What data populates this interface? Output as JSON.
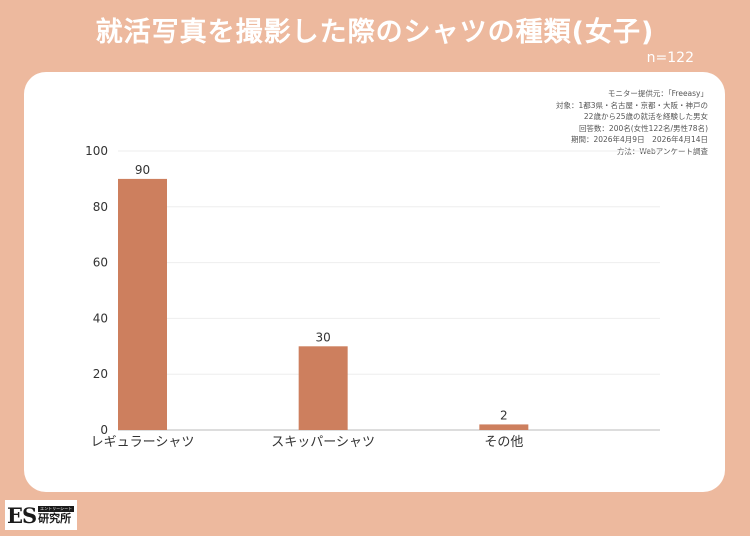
{
  "title": "就活写真を撮影した際のシャツの種類(女子)",
  "sample_size": "n=122",
  "survey_info": [
    "モニター提供元：「Freeasy」",
    "対象：1都3県・名古屋・京都・大阪・神戸の",
    "22歳から25歳の就活を経験した男女",
    "回答数：200名(女性122名/男性78名)",
    "期間：2026年4月9日　2026年4月14日",
    "方法：Webアンケート調査"
  ],
  "logo": {
    "mark": "ES",
    "sub": "エントリーシート",
    "name": "研究所"
  },
  "colors": {
    "background": "#EDB99E",
    "bar": "#CD7F5E",
    "panel": "#FFFFFF"
  },
  "chart_data": {
    "type": "bar",
    "categories": [
      "レギュラーシャツ",
      "スキッパーシャツ",
      "その他"
    ],
    "values": [
      90,
      30,
      2
    ],
    "ylim": [
      0,
      100
    ],
    "yticks": [
      "0",
      "20",
      "40",
      "60",
      "80",
      "100"
    ],
    "data_labels": [
      "90",
      "30",
      "2"
    ],
    "grid": true
  }
}
